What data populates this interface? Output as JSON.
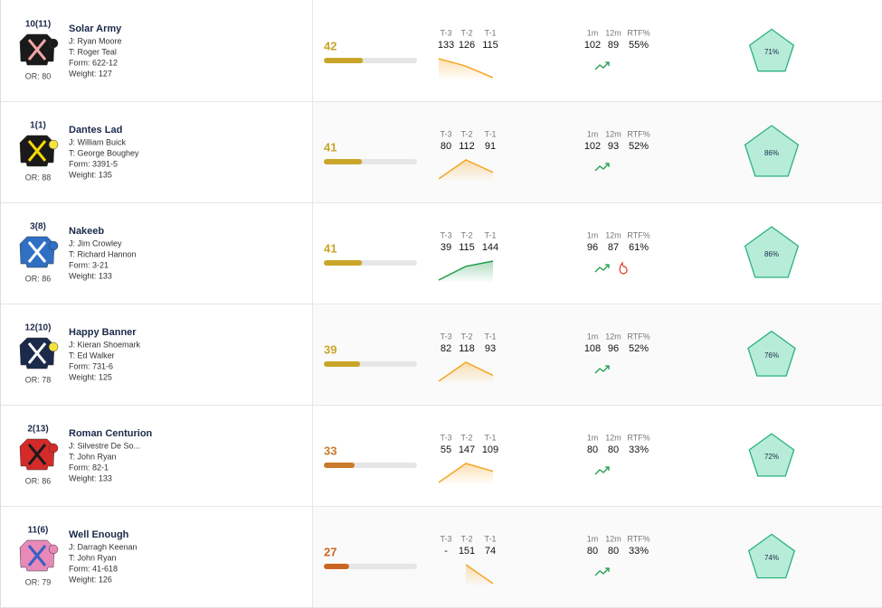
{
  "rows": [
    {
      "number": "10(11)",
      "name": "Solar Army",
      "jockey": "J: Ryan Moore",
      "trainer": "T: Roger Teal",
      "form": "Form: 622-12",
      "weight": "Weight: 127",
      "or": "OR: 80",
      "rating": 42,
      "rating_color": "#c9a62a",
      "t_labels": [
        "T-3",
        "T-2",
        "T-1"
      ],
      "t_values": [
        133,
        126,
        115
      ],
      "trend_color": "#f5a623",
      "stat_labels": [
        "1m",
        "12m",
        "RTF%"
      ],
      "stats": [
        102,
        89,
        "55%"
      ],
      "pentagon": {
        "value": 71,
        "label": "71%"
      },
      "silk": {
        "body": "#1a1a1a",
        "accent": "#f2a5a5",
        "cap": "#1a1a1a"
      }
    },
    {
      "number": "1(1)",
      "name": "Dantes Lad",
      "jockey": "J: William Buick",
      "trainer": "T: George Boughey",
      "form": "Form: 3391-5",
      "weight": "Weight: 135",
      "or": "OR: 88",
      "rating": 41,
      "rating_color": "#c9a62a",
      "t_labels": [
        "T-3",
        "T-2",
        "T-1"
      ],
      "t_values": [
        80,
        112,
        91
      ],
      "trend_color": "#f5a623",
      "stat_labels": [
        "1m",
        "12m",
        "RTF%"
      ],
      "stats": [
        102,
        93,
        "52%"
      ],
      "pentagon": {
        "value": 86,
        "label": "86%"
      },
      "silk": {
        "body": "#1a1a1a",
        "accent": "#f5d90a",
        "cap": "#f5e43a"
      }
    },
    {
      "number": "3(8)",
      "name": "Nakeeb",
      "jockey": "J: Jim Crowley",
      "trainer": "T: Richard Hannon",
      "form": "Form: 3-21",
      "weight": "Weight: 133",
      "or": "OR: 86",
      "rating": 41,
      "rating_color": "#c9a62a",
      "t_labels": [
        "T-3",
        "T-2",
        "T-1"
      ],
      "t_values": [
        39,
        115,
        144
      ],
      "trend_color": "#1f9d4a",
      "stat_labels": [
        "1m",
        "12m",
        "RTF%"
      ],
      "stats": [
        96,
        87,
        "61%"
      ],
      "fire": true,
      "pentagon": {
        "value": 86,
        "label": "86%"
      },
      "silk": {
        "body": "#2f6fc4",
        "accent": "#ffffff",
        "cap": "#2f6fc4"
      }
    },
    {
      "number": "12(10)",
      "name": "Happy Banner",
      "jockey": "J: Kieran Shoemark",
      "trainer": "T: Ed Walker",
      "form": "Form: 731-6",
      "weight": "Weight: 125",
      "or": "OR: 78",
      "rating": 39,
      "rating_color": "#c9a62a",
      "t_labels": [
        "T-3",
        "T-2",
        "T-1"
      ],
      "t_values": [
        82,
        118,
        93
      ],
      "trend_color": "#f5a623",
      "stat_labels": [
        "1m",
        "12m",
        "RTF%"
      ],
      "stats": [
        108,
        96,
        "52%"
      ],
      "pentagon": {
        "value": 76,
        "label": "76%"
      },
      "silk": {
        "body": "#1b2a4a",
        "accent": "#ffffff",
        "cap": "#f5e43a"
      }
    },
    {
      "number": "2(13)",
      "name": "Roman Centurion",
      "jockey": "J: Silvestre De So...",
      "trainer": "T: John Ryan",
      "form": "Form: 82-1",
      "weight": "Weight: 133",
      "or": "OR: 86",
      "rating": 33,
      "rating_color": "#c97a2a",
      "t_labels": [
        "T-3",
        "T-2",
        "T-1"
      ],
      "t_values": [
        55,
        147,
        109
      ],
      "trend_color": "#f5a623",
      "stat_labels": [
        "1m",
        "12m",
        "RTF%"
      ],
      "stats": [
        80,
        80,
        "33%"
      ],
      "pentagon": {
        "value": 72,
        "label": "72%"
      },
      "silk": {
        "body": "#d42a2a",
        "accent": "#1a1a1a",
        "cap": "#d42a2a"
      }
    },
    {
      "number": "11(6)",
      "name": "Well Enough",
      "jockey": "J: Darragh Keenan",
      "trainer": "T: John Ryan",
      "form": "Form: 41-618",
      "weight": "Weight: 126",
      "or": "OR: 79",
      "rating": 27,
      "rating_color": "#c9651f",
      "t_labels": [
        "T-3",
        "T-2",
        "T-1"
      ],
      "t_values": [
        null,
        151,
        74
      ],
      "t_value_labels": [
        "-",
        "151",
        "74"
      ],
      "trend_color": "#f5a623",
      "stat_labels": [
        "1m",
        "12m",
        "RTF%"
      ],
      "stats": [
        80,
        80,
        "33%"
      ],
      "pentagon": {
        "value": 74,
        "label": "74%"
      },
      "silk": {
        "body": "#e889b8",
        "accent": "#3a5fc4",
        "cap": "#e889b8"
      }
    }
  ]
}
